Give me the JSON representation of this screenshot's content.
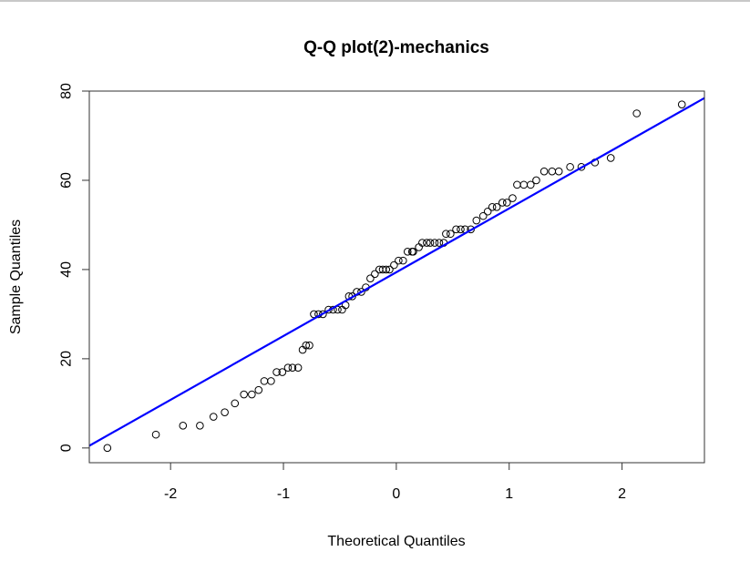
{
  "chart_data": {
    "type": "scatter",
    "title": "Q-Q plot(2)-mechanics",
    "xlabel": "Theoretical Quantiles",
    "ylabel": "Sample Quantiles",
    "xlim": [
      -2.72,
      2.73
    ],
    "ylim": [
      -3.3,
      80
    ],
    "x_ticks": [
      -2,
      -1,
      0,
      1,
      2
    ],
    "x_tick_labels": [
      "-2",
      "-1",
      "0",
      "1",
      "2"
    ],
    "y_ticks": [
      0,
      20,
      40,
      60,
      80
    ],
    "y_tick_labels": [
      "0",
      "20",
      "40",
      "60",
      "80"
    ],
    "grid": false,
    "legend": null,
    "reference_line": {
      "slope": 14.3,
      "intercept": 39.4,
      "color": "#0000ff"
    },
    "point_style": {
      "shape": "open-circle",
      "color": "#000000"
    },
    "points": [
      [
        -2.56,
        0
      ],
      [
        -2.13,
        3
      ],
      [
        -1.89,
        5
      ],
      [
        -1.74,
        5
      ],
      [
        -1.62,
        7
      ],
      [
        -1.52,
        8
      ],
      [
        -1.43,
        10
      ],
      [
        -1.35,
        12
      ],
      [
        -1.28,
        12
      ],
      [
        -1.22,
        13
      ],
      [
        -1.17,
        15
      ],
      [
        -1.11,
        15
      ],
      [
        -1.06,
        17
      ],
      [
        -1.01,
        17
      ],
      [
        -0.96,
        18
      ],
      [
        -0.92,
        18
      ],
      [
        -0.87,
        18
      ],
      [
        -0.83,
        22
      ],
      [
        -0.8,
        23
      ],
      [
        -0.77,
        23
      ],
      [
        -0.73,
        30
      ],
      [
        -0.69,
        30
      ],
      [
        -0.65,
        30
      ],
      [
        -0.6,
        31
      ],
      [
        -0.56,
        31
      ],
      [
        -0.52,
        31
      ],
      [
        -0.48,
        31
      ],
      [
        -0.45,
        32
      ],
      [
        -0.42,
        34
      ],
      [
        -0.39,
        34
      ],
      [
        -0.35,
        35
      ],
      [
        -0.31,
        35
      ],
      [
        -0.27,
        36
      ],
      [
        -0.23,
        38
      ],
      [
        -0.19,
        39
      ],
      [
        -0.15,
        40
      ],
      [
        -0.12,
        40
      ],
      [
        -0.09,
        40
      ],
      [
        -0.06,
        40
      ],
      [
        -0.02,
        41
      ],
      [
        0.02,
        42
      ],
      [
        0.06,
        42
      ],
      [
        0.1,
        44
      ],
      [
        0.14,
        44
      ],
      [
        0.15,
        44
      ],
      [
        0.2,
        45
      ],
      [
        0.23,
        46
      ],
      [
        0.27,
        46
      ],
      [
        0.3,
        46
      ],
      [
        0.34,
        46
      ],
      [
        0.38,
        46
      ],
      [
        0.42,
        46
      ],
      [
        0.44,
        48
      ],
      [
        0.48,
        48
      ],
      [
        0.53,
        49
      ],
      [
        0.57,
        49
      ],
      [
        0.61,
        49
      ],
      [
        0.66,
        49
      ],
      [
        0.71,
        51
      ],
      [
        0.77,
        52
      ],
      [
        0.81,
        53
      ],
      [
        0.85,
        54
      ],
      [
        0.89,
        54
      ],
      [
        0.94,
        55
      ],
      [
        0.98,
        55
      ],
      [
        1.03,
        56
      ],
      [
        1.07,
        59
      ],
      [
        1.13,
        59
      ],
      [
        1.19,
        59
      ],
      [
        1.24,
        60
      ],
      [
        1.31,
        62
      ],
      [
        1.38,
        62
      ],
      [
        1.44,
        62
      ],
      [
        1.54,
        63
      ],
      [
        1.64,
        63
      ],
      [
        1.76,
        64
      ],
      [
        1.9,
        65
      ],
      [
        2.13,
        75
      ],
      [
        2.53,
        77
      ]
    ]
  }
}
